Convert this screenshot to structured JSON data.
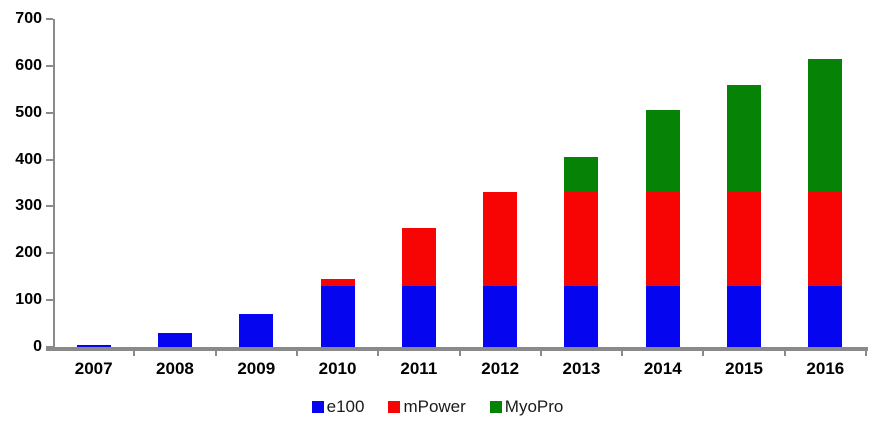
{
  "chart_data": {
    "type": "bar",
    "stacked": true,
    "title": "",
    "xlabel": "",
    "ylabel": "",
    "categories": [
      "2007",
      "2008",
      "2009",
      "2010",
      "2011",
      "2012",
      "2013",
      "2014",
      "2015",
      "2016"
    ],
    "series": [
      {
        "name": "e100",
        "color": "#0505f0",
        "values": [
          5,
          30,
          70,
          130,
          130,
          130,
          130,
          130,
          130,
          130
        ]
      },
      {
        "name": "mPower",
        "color": "#f70505",
        "values": [
          0,
          0,
          0,
          15,
          125,
          200,
          200,
          200,
          200,
          200
        ]
      },
      {
        "name": "MyoPro",
        "color": "#068206",
        "values": [
          0,
          0,
          0,
          0,
          0,
          0,
          75,
          175,
          230,
          285
        ]
      }
    ],
    "stack_totals": [
      5,
      30,
      70,
      145,
      255,
      330,
      405,
      505,
      560,
      615
    ],
    "ylim": [
      0,
      700
    ],
    "yticks": [
      0,
      100,
      200,
      300,
      400,
      500,
      600,
      700
    ],
    "grid": false,
    "legend_position": "bottom-center",
    "axis_color": "#8a8a8a",
    "label_color": "#000000"
  }
}
